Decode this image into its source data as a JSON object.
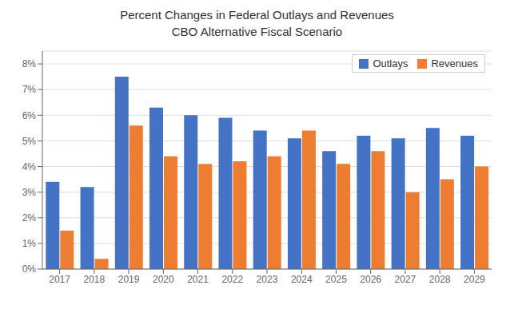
{
  "chart_data": {
    "type": "bar",
    "title": "Percent Changes in Federal Outlays and Revenues",
    "subtitle": "CBO Alternative Fiscal Scenario",
    "categories": [
      "2017",
      "2018",
      "2019",
      "2020",
      "2021",
      "2022",
      "2023",
      "2024",
      "2025",
      "2026",
      "2027",
      "2028",
      "2029"
    ],
    "series": [
      {
        "name": "Outlays",
        "color": "#4472C4",
        "values": [
          0.034,
          0.032,
          0.075,
          0.063,
          0.06,
          0.059,
          0.054,
          0.051,
          0.046,
          0.052,
          0.051,
          0.055,
          0.052
        ]
      },
      {
        "name": "Revenues",
        "color": "#ED7D31",
        "values": [
          0.015,
          0.004,
          0.056,
          0.044,
          0.041,
          0.042,
          0.044,
          0.054,
          0.041,
          0.046,
          0.03,
          0.035,
          0.04
        ]
      }
    ],
    "ylim": [
      0,
      0.085
    ],
    "yticks": [
      {
        "value": 0,
        "label": "0%"
      },
      {
        "value": 0.01,
        "label": "1%"
      },
      {
        "value": 0.02,
        "label": "2%"
      },
      {
        "value": 0.03,
        "label": "3%"
      },
      {
        "value": 0.04,
        "label": "4%"
      },
      {
        "value": 0.05,
        "label": "5%"
      },
      {
        "value": 0.06,
        "label": "6%"
      },
      {
        "value": 0.07,
        "label": "7%"
      },
      {
        "value": 0.08,
        "label": "8%"
      }
    ],
    "grid": true,
    "legend": "upper right"
  }
}
